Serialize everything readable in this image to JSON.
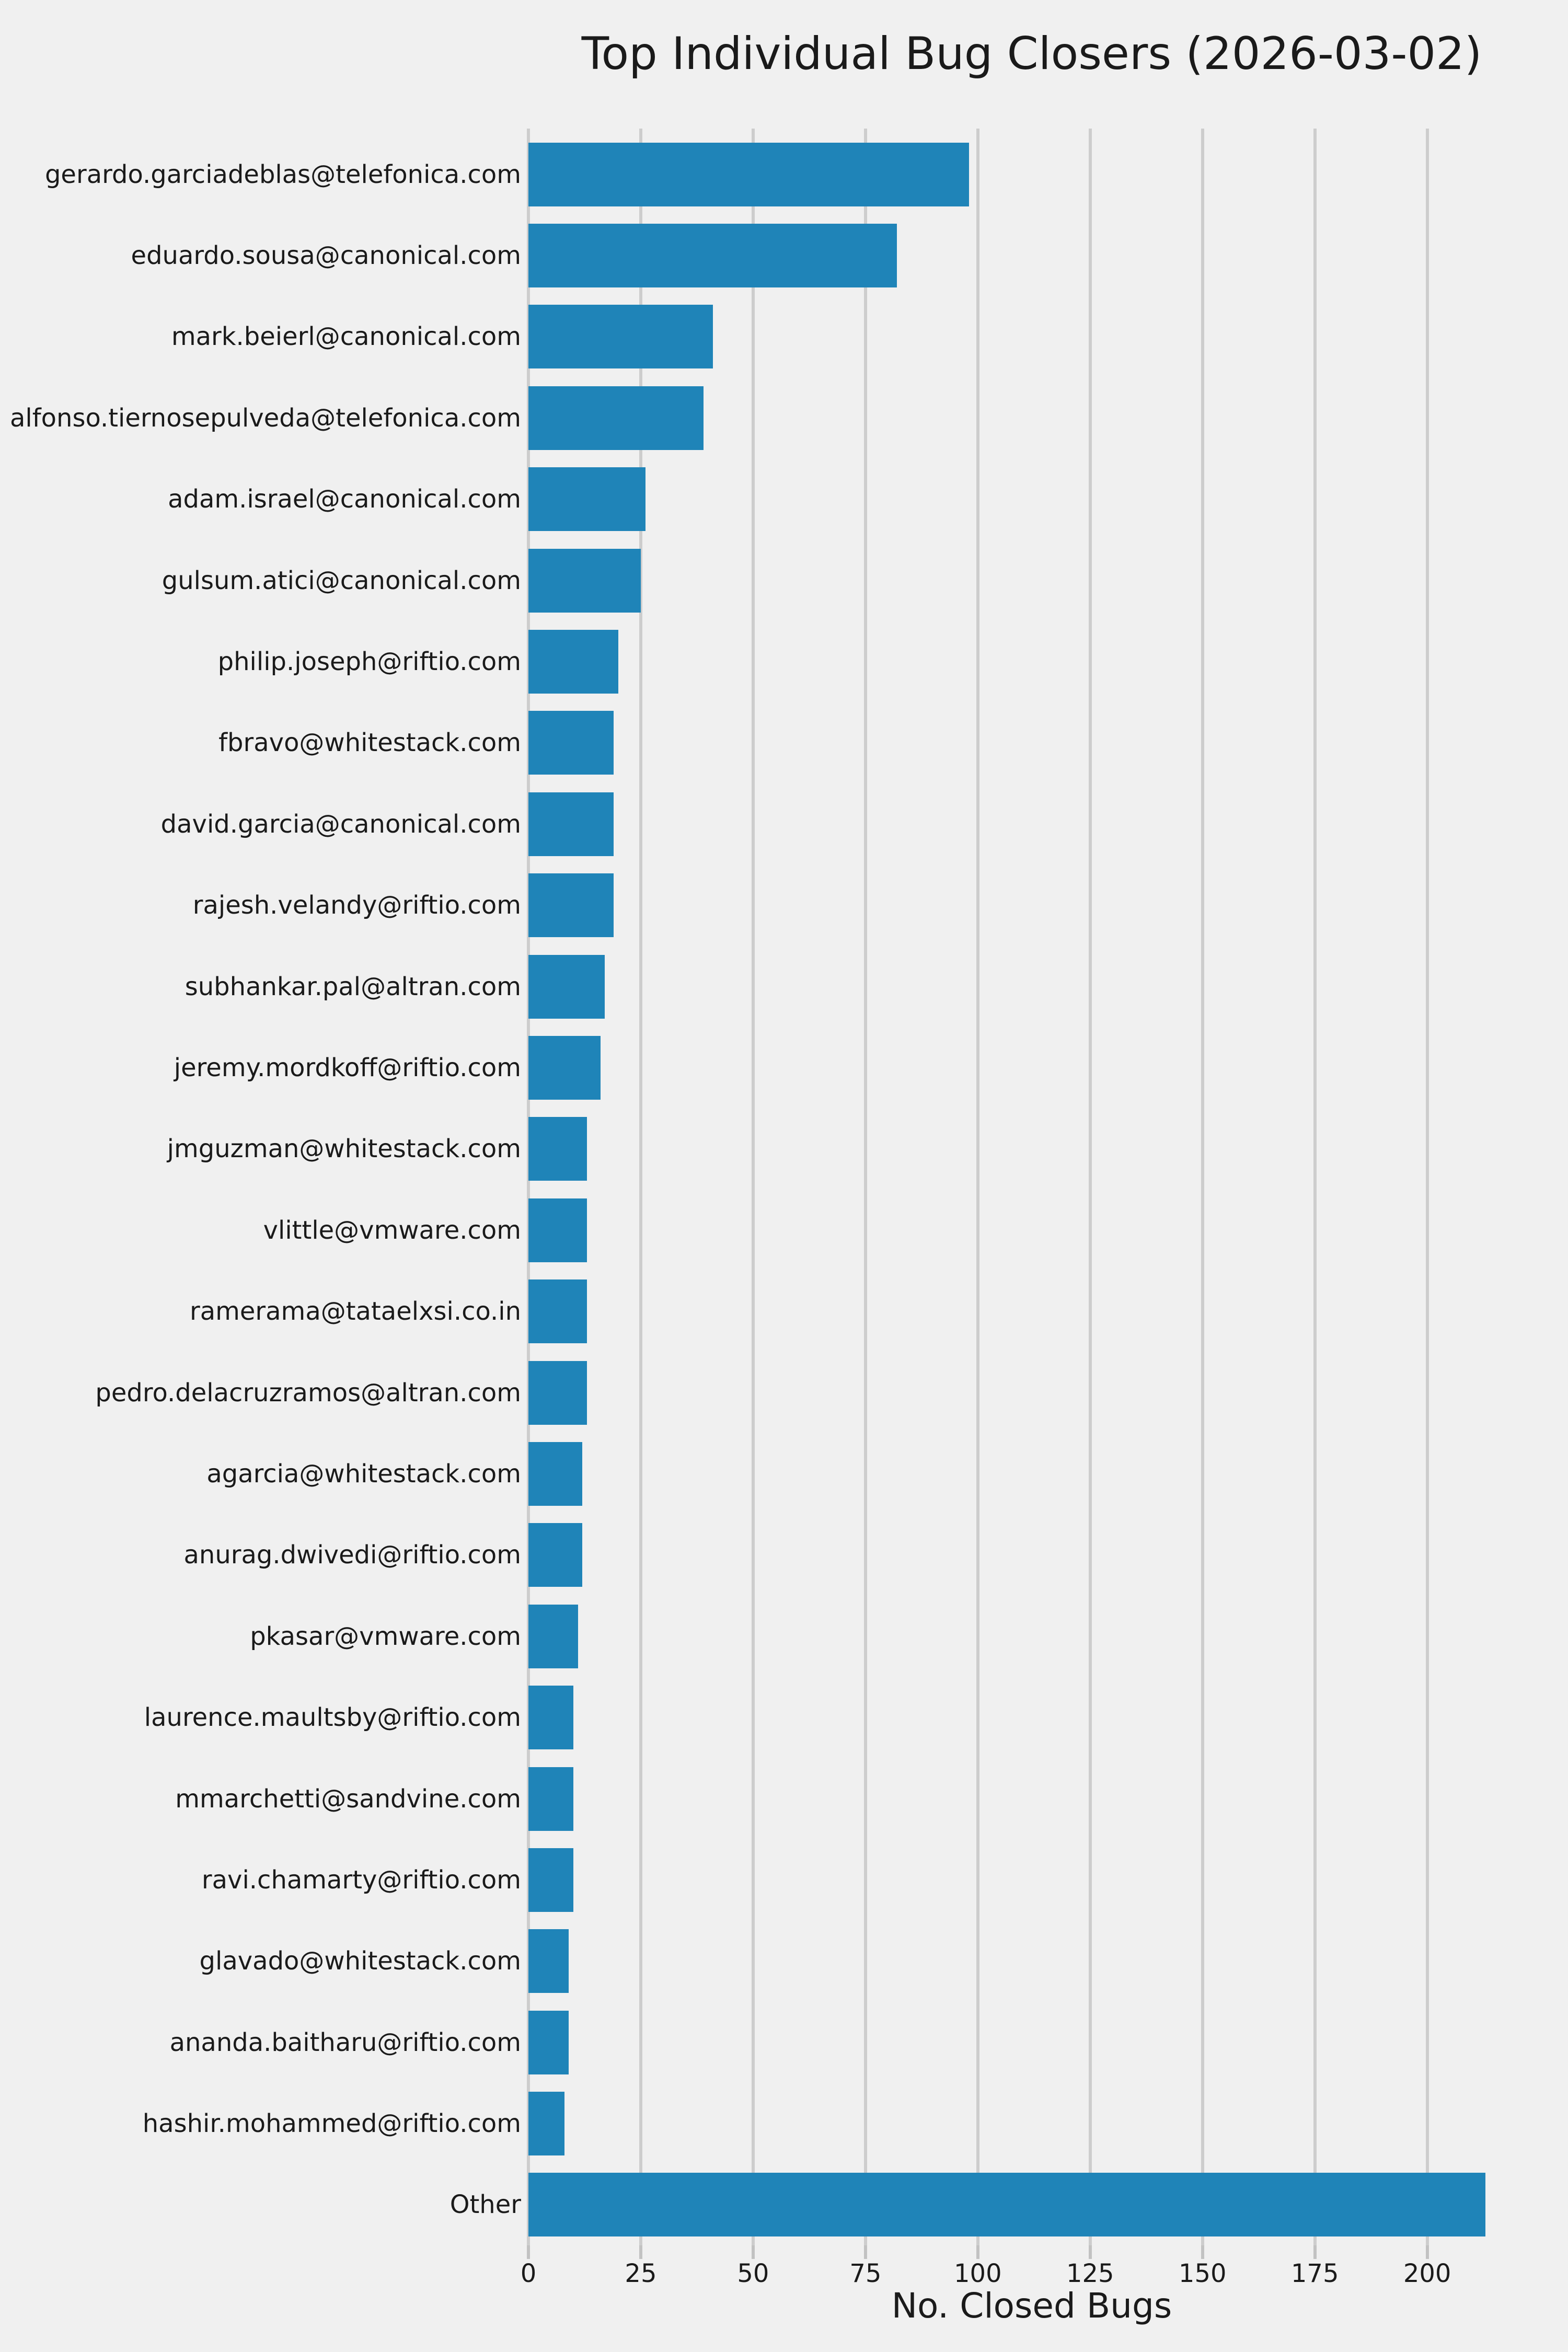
{
  "chart_data": {
    "type": "bar",
    "orientation": "horizontal",
    "title": "Top Individual Bug Closers (2026-03-02)",
    "xlabel": "No. Closed Bugs",
    "ylabel": "",
    "categories": [
      "gerardo.garciadeblas@telefonica.com",
      "eduardo.sousa@canonical.com",
      "mark.beierl@canonical.com",
      "alfonso.tiernosepulveda@telefonica.com",
      "adam.israel@canonical.com",
      "gulsum.atici@canonical.com",
      "philip.joseph@riftio.com",
      "fbravo@whitestack.com",
      "david.garcia@canonical.com",
      "rajesh.velandy@riftio.com",
      "subhankar.pal@altran.com",
      "jeremy.mordkoff@riftio.com",
      "jmguzman@whitestack.com",
      "vlittle@vmware.com",
      "ramerama@tataelxsi.co.in",
      "pedro.delacruzramos@altran.com",
      "agarcia@whitestack.com",
      "anurag.dwivedi@riftio.com",
      "pkasar@vmware.com",
      "laurence.maultsby@riftio.com",
      "mmarchetti@sandvine.com",
      "ravi.chamarty@riftio.com",
      "glavado@whitestack.com",
      "ananda.baitharu@riftio.com",
      "hashir.mohammed@riftio.com",
      "Other"
    ],
    "values": [
      98,
      82,
      41,
      39,
      26,
      25,
      20,
      19,
      19,
      19,
      17,
      16,
      13,
      13,
      13,
      13,
      12,
      12,
      11,
      10,
      10,
      10,
      9,
      9,
      8,
      213
    ],
    "x_ticks": [
      0,
      25,
      50,
      75,
      100,
      125,
      150,
      175,
      200
    ],
    "xlim": [
      0,
      224
    ],
    "grid": true,
    "legend": false,
    "colors": {
      "bar": "#1f84b8",
      "figure_background": "#f0f0f0",
      "gridline": "#cdcdcd",
      "tick_mark": "#c2c2c2",
      "text": "#1a1a1a"
    }
  }
}
